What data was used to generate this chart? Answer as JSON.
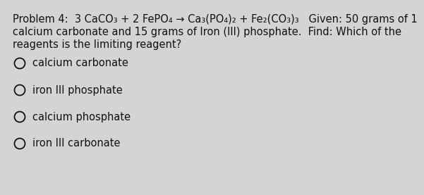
{
  "background_color": "#d4d4d4",
  "title_line1": "Problem 4:  3 CaCO₃ + 2 FePO₄ → Ca₃(PO₄)₂ + Fe₂(CO₃)₃   Given: 50 grams of 1",
  "title_line2": "calcium carbonate and 15 grams of Iron (III) phosphate.  Find: Which of the",
  "title_line3": "reagents is the limiting reagent?",
  "options": [
    "calcium carbonate",
    "iron III phosphate",
    "calcium phosphate",
    "iron III carbonate"
  ],
  "text_color": "#111111",
  "font_size": 10.5,
  "option_font_size": 10.5,
  "circle_color": "#111111"
}
